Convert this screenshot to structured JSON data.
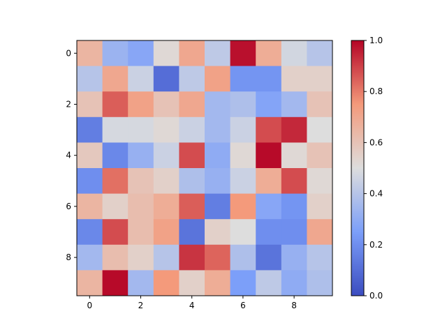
{
  "chart_data": {
    "type": "heatmap",
    "colormap": "coolwarm",
    "vmin": 0.0,
    "vmax": 1.0,
    "rows": 10,
    "cols": 10,
    "x_ticks": [
      0,
      2,
      4,
      6,
      8
    ],
    "y_ticks": [
      0,
      2,
      4,
      6,
      8
    ],
    "colorbar_ticks": [
      "0.0",
      "0.2",
      "0.4",
      "0.6",
      "0.8",
      "1.0"
    ],
    "values": [
      [
        0.65,
        0.33,
        0.28,
        0.52,
        0.7,
        0.42,
        0.98,
        0.68,
        0.47,
        0.4
      ],
      [
        0.4,
        0.7,
        0.45,
        0.1,
        0.42,
        0.72,
        0.22,
        0.22,
        0.55,
        0.55
      ],
      [
        0.6,
        0.85,
        0.72,
        0.6,
        0.7,
        0.35,
        0.38,
        0.27,
        0.35,
        0.6
      ],
      [
        0.15,
        0.48,
        0.48,
        0.52,
        0.45,
        0.35,
        0.45,
        0.88,
        0.94,
        0.5
      ],
      [
        0.58,
        0.18,
        0.32,
        0.45,
        0.88,
        0.3,
        0.52,
        0.99,
        0.52,
        0.6
      ],
      [
        0.2,
        0.82,
        0.6,
        0.55,
        0.38,
        0.32,
        0.45,
        0.68,
        0.88,
        0.52
      ],
      [
        0.65,
        0.55,
        0.62,
        0.68,
        0.85,
        0.15,
        0.75,
        0.28,
        0.22,
        0.55
      ],
      [
        0.18,
        0.88,
        0.62,
        0.72,
        0.12,
        0.55,
        0.5,
        0.2,
        0.2,
        0.7
      ],
      [
        0.35,
        0.62,
        0.55,
        0.4,
        0.92,
        0.84,
        0.38,
        0.12,
        0.32,
        0.4
      ],
      [
        0.65,
        0.99,
        0.35,
        0.75,
        0.55,
        0.68,
        0.25,
        0.42,
        0.3,
        0.38
      ]
    ]
  }
}
